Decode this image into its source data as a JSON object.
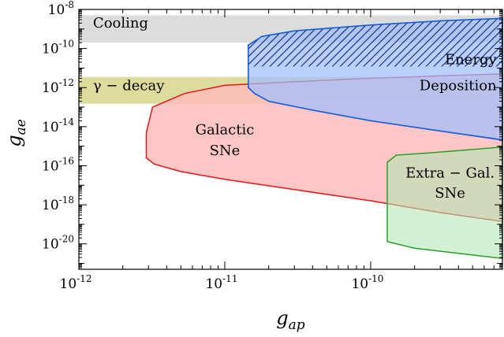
{
  "chart_data": {
    "type": "area",
    "title": "",
    "xlabel": "g_ap",
    "ylabel": "g_ae",
    "xscale": "log",
    "yscale": "log",
    "xlim": [
      1e-12,
      8e-10
    ],
    "ylim": [
      5e-22,
      1e-08
    ],
    "x_ticks": [
      {
        "value": 1e-12,
        "exp": "-12"
      },
      {
        "value": 1e-11,
        "exp": "-11"
      },
      {
        "value": 1e-10,
        "exp": "-10"
      }
    ],
    "y_ticks": [
      {
        "value": 1e-08,
        "exp": "-8"
      },
      {
        "value": 1e-10,
        "exp": "-10"
      },
      {
        "value": 1e-12,
        "exp": "-12"
      },
      {
        "value": 1e-14,
        "exp": "-14"
      },
      {
        "value": 1e-16,
        "exp": "-16"
      },
      {
        "value": 1e-18,
        "exp": "-18"
      },
      {
        "value": 1e-20,
        "exp": "-20"
      }
    ],
    "legend": "none",
    "grid": false,
    "series": [
      {
        "name": "Cooling",
        "kind": "band",
        "y_range": [
          2e-10,
          5e-09
        ],
        "x_range": [
          1e-12,
          8e-10
        ],
        "fill": "#dcdcdc",
        "stroke": "none"
      },
      {
        "name": "γ − decay",
        "kind": "band",
        "y_range": [
          1.5e-13,
          3.5e-12
        ],
        "x_range": [
          1e-12,
          8e-10
        ],
        "fill": "#dedc9c",
        "stroke": "none"
      },
      {
        "name": "Galactic SNe",
        "kind": "polygon",
        "fill": "#ffbcbc",
        "fill_opacity": 0.85,
        "stroke": "#e01818",
        "points": [
          [
            2.9e-12,
            2.5e-16
          ],
          [
            2.9e-12,
            5e-15
          ],
          [
            3.2e-12,
            1e-13
          ],
          [
            4.1e-12,
            2.2e-13
          ],
          [
            5.3e-12,
            5e-13
          ],
          [
            1e-11,
            1.3e-12
          ],
          [
            3e-11,
            2e-12
          ],
          [
            1e-10,
            3e-12
          ],
          [
            3e-10,
            4e-12
          ],
          [
            8e-10,
            5e-12
          ],
          [
            8e-10,
            1.4e-19
          ],
          [
            3e-10,
            4e-19
          ],
          [
            1e-10,
            1.6e-18
          ],
          [
            3e-11,
            6e-18
          ],
          [
            1e-11,
            2e-17
          ],
          [
            5e-12,
            5e-17
          ],
          [
            3.3e-12,
            1.2e-16
          ]
        ]
      },
      {
        "name": "Energy Deposition",
        "kind": "polygon",
        "fill": "#9fbfff",
        "fill_opacity": 0.72,
        "stroke": "#1a5fd8",
        "hatch": "upper",
        "points": [
          [
            1.45e-11,
            1e-12
          ],
          [
            1.45e-11,
            1.5e-10
          ],
          [
            1.8e-11,
            4.2e-10
          ],
          [
            3e-11,
            8e-10
          ],
          [
            1e-10,
            1.6e-09
          ],
          [
            3e-10,
            2.6e-09
          ],
          [
            8e-10,
            3.5e-09
          ],
          [
            8e-10,
            2.1e-15
          ],
          [
            3e-10,
            6e-15
          ],
          [
            1e-10,
            2e-14
          ],
          [
            4e-11,
            7e-14
          ],
          [
            2e-11,
            2e-13
          ],
          [
            1.6e-11,
            5e-13
          ]
        ]
      },
      {
        "name": "Extra − Gal. SNe",
        "kind": "polygon",
        "fill": "#b4e6b4",
        "fill_opacity": 0.6,
        "stroke": "#2a9f2a",
        "points": [
          [
            1.3e-10,
            1.5e-16
          ],
          [
            1.5e-10,
            3.5e-16
          ],
          [
            2.5e-10,
            4.5e-16
          ],
          [
            4e-10,
            6e-16
          ],
          [
            8e-10,
            9e-16
          ],
          [
            8e-10,
            1.8e-21
          ],
          [
            4e-10,
            3.3e-21
          ],
          [
            2e-10,
            6e-21
          ],
          [
            1.3e-10,
            1.3e-20
          ]
        ]
      }
    ],
    "labels": [
      {
        "key": "cooling",
        "text": "Cooling",
        "x": 1.25e-12,
        "y": 1.2e-09,
        "anchor": "start"
      },
      {
        "key": "gamma",
        "text": "γ − decay",
        "x": 1.25e-12,
        "y": 7.5e-13,
        "anchor": "start"
      },
      {
        "key": "energy1",
        "text": "Energy",
        "x": 7.3e-10,
        "y": 1.6e-11,
        "anchor": "end"
      },
      {
        "key": "energy2",
        "text": "Deposition",
        "x": 7.3e-10,
        "y": 7.5e-13,
        "anchor": "end"
      },
      {
        "key": "galactic1",
        "text": "Galactic",
        "x": 1e-11,
        "y": 4e-15,
        "anchor": "middle"
      },
      {
        "key": "galactic2",
        "text": "SNe",
        "x": 1e-11,
        "y": 3.5e-16,
        "anchor": "middle"
      },
      {
        "key": "extra1",
        "text": "Extra − Gal.",
        "x": 3.5e-10,
        "y": 2.5e-17,
        "anchor": "middle"
      },
      {
        "key": "extra2",
        "text": "SNe",
        "x": 3.5e-10,
        "y": 2.3e-18,
        "anchor": "middle"
      }
    ]
  }
}
